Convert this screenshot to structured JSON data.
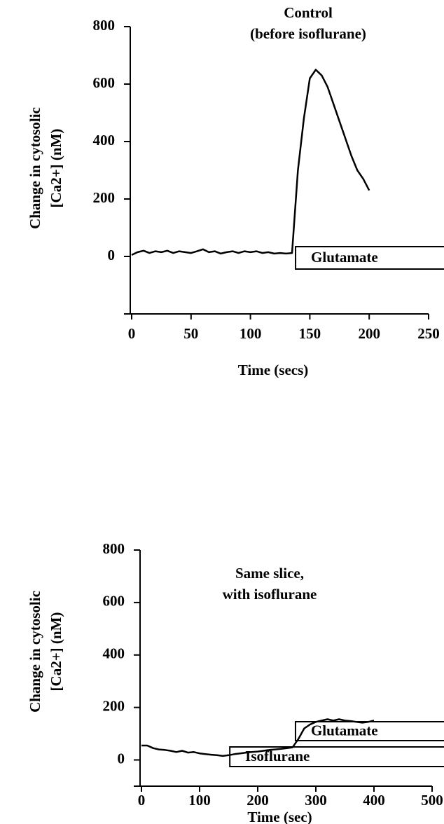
{
  "chart_data": [
    {
      "type": "line",
      "title": "Control",
      "subtitle": "(before isoflurane)",
      "ylabel": [
        "Change in cytosolic",
        "[Ca2+]  (nM)"
      ],
      "xlabel": "Time  (secs)",
      "xlim": [
        0,
        250
      ],
      "xticks": [
        0,
        50,
        100,
        150,
        200,
        250
      ],
      "ylim": [
        -200,
        800
      ],
      "yticks": [
        0,
        200,
        400,
        600,
        800
      ],
      "annotations": [
        {
          "text": "Glutamate",
          "start": 138
        }
      ],
      "x": [
        0,
        5,
        10,
        15,
        20,
        25,
        30,
        35,
        40,
        45,
        50,
        55,
        60,
        65,
        70,
        75,
        80,
        85,
        90,
        95,
        100,
        105,
        110,
        115,
        120,
        125,
        130,
        135,
        140,
        145,
        150,
        155,
        160,
        165,
        170,
        175,
        180,
        185,
        190,
        195,
        200
      ],
      "series": [
        {
          "name": "Ca",
          "color": "#000000",
          "values": [
            5,
            15,
            20,
            12,
            18,
            15,
            20,
            12,
            18,
            15,
            12,
            18,
            25,
            15,
            18,
            10,
            15,
            18,
            12,
            18,
            15,
            18,
            12,
            15,
            10,
            12,
            10,
            12,
            300,
            480,
            620,
            650,
            630,
            590,
            530,
            470,
            410,
            350,
            300,
            270,
            230
          ]
        }
      ]
    },
    {
      "type": "line",
      "title": "Same slice,",
      "subtitle": "with isoflurane",
      "ylabel": [
        "Change in cytosolic",
        "[Ca2+]  (nM)"
      ],
      "xlabel": "Time  (sec)",
      "xlim": [
        0,
        500
      ],
      "xticks": [
        0,
        100,
        200,
        300,
        400,
        500
      ],
      "ylim": [
        -100,
        800
      ],
      "yticks": [
        0,
        200,
        400,
        600,
        800
      ],
      "annotations": [
        {
          "text": "Glutamate",
          "start": 265
        },
        {
          "text": "Isoflurane",
          "start": 152
        }
      ],
      "x": [
        0,
        10,
        20,
        30,
        40,
        50,
        60,
        70,
        80,
        90,
        100,
        110,
        120,
        130,
        140,
        150,
        160,
        170,
        180,
        190,
        200,
        210,
        220,
        230,
        240,
        250,
        260,
        270,
        280,
        290,
        300,
        310,
        320,
        330,
        340,
        350,
        360,
        370,
        380,
        390,
        400
      ],
      "series": [
        {
          "name": "Ca",
          "color": "#000000",
          "values": [
            55,
            55,
            45,
            40,
            38,
            35,
            30,
            35,
            28,
            30,
            25,
            22,
            20,
            18,
            15,
            18,
            22,
            25,
            28,
            30,
            32,
            35,
            38,
            40,
            42,
            45,
            48,
            80,
            120,
            135,
            145,
            150,
            155,
            150,
            155,
            150,
            148,
            145,
            142,
            145,
            150
          ]
        }
      ]
    }
  ]
}
